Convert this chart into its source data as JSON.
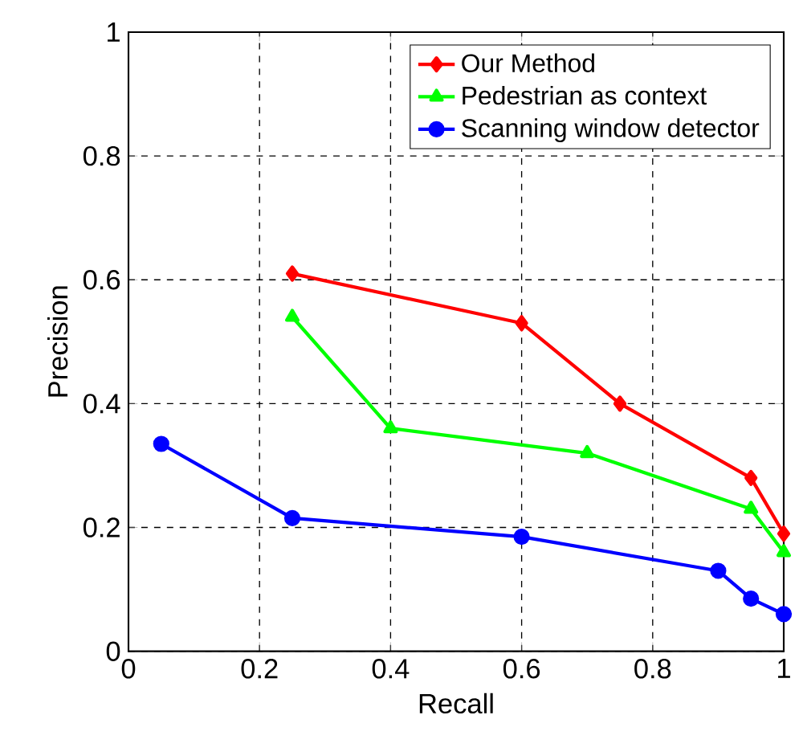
{
  "chart_data": {
    "type": "line",
    "xlabel": "Recall",
    "ylabel": "Precision",
    "xlim": [
      0,
      1
    ],
    "ylim": [
      0,
      1
    ],
    "xticks": [
      0,
      0.2,
      0.4,
      0.6,
      0.8,
      1
    ],
    "yticks": [
      0,
      0.2,
      0.4,
      0.6,
      0.8,
      1
    ],
    "grid": true,
    "legend": "top right",
    "line_style": "solid",
    "series": [
      {
        "name": "Our Method",
        "color": "#ff0000",
        "marker": "diamond",
        "x": [
          0.25,
          0.6,
          0.75,
          0.95,
          1.0
        ],
        "values": [
          0.61,
          0.53,
          0.4,
          0.28,
          0.19
        ]
      },
      {
        "name": "Pedestrian as context",
        "color": "#00ff00",
        "marker": "triangle",
        "x": [
          0.25,
          0.4,
          0.7,
          0.95,
          1.0
        ],
        "values": [
          0.54,
          0.36,
          0.32,
          0.23,
          0.16
        ]
      },
      {
        "name": "Scanning window detector",
        "color": "#0000ff",
        "marker": "circle",
        "x": [
          0.05,
          0.25,
          0.6,
          0.9,
          0.95,
          1.0
        ],
        "values": [
          0.335,
          0.215,
          0.185,
          0.13,
          0.085,
          0.06
        ]
      }
    ]
  }
}
